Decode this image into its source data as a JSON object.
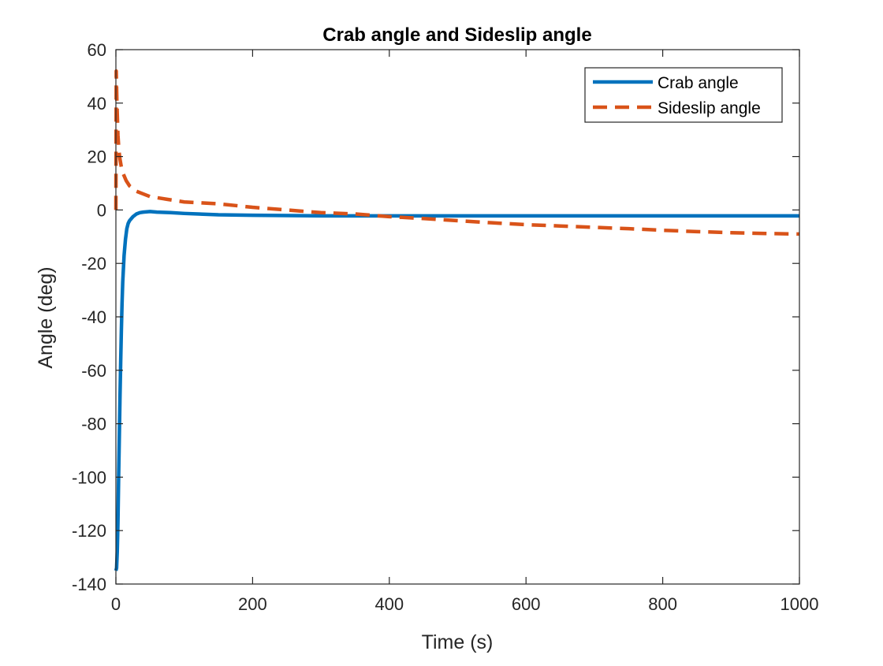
{
  "chart_data": {
    "type": "line",
    "title": "Crab angle and Sideslip angle",
    "xlabel": "Time (s)",
    "ylabel": "Angle (deg)",
    "xlim": [
      0,
      1000
    ],
    "ylim": [
      -140,
      60
    ],
    "xticks": [
      0,
      200,
      400,
      600,
      800,
      1000
    ],
    "yticks": [
      -140,
      -120,
      -100,
      -80,
      -60,
      -40,
      -20,
      0,
      20,
      40,
      60
    ],
    "grid": false,
    "legend": {
      "placement": "top-right",
      "entries": [
        "Crab angle",
        "Sideslip angle"
      ]
    },
    "series": [
      {
        "name": "Crab angle",
        "color": "#0072BD",
        "style": "solid",
        "x": [
          0,
          1,
          2,
          3,
          4,
          5,
          6,
          7,
          8,
          9,
          10,
          12,
          14,
          16,
          18,
          20,
          25,
          30,
          35,
          40,
          50,
          60,
          80,
          100,
          150,
          200,
          300,
          400,
          500,
          600,
          700,
          800,
          900,
          1000
        ],
        "y": [
          -135,
          -134,
          -128,
          -117,
          -100,
          -85,
          -70,
          -57,
          -45,
          -35,
          -27,
          -17,
          -11,
          -7,
          -5,
          -4,
          -2.5,
          -1.5,
          -1,
          -0.8,
          -0.6,
          -0.8,
          -1,
          -1.3,
          -1.8,
          -2,
          -2.2,
          -2.2,
          -2.2,
          -2.2,
          -2.2,
          -2.2,
          -2.2,
          -2.2
        ]
      },
      {
        "name": "Sideslip angle",
        "color": "#D95319",
        "style": "dashed",
        "x": [
          0,
          0.5,
          1,
          1.5,
          2,
          2.5,
          3,
          4,
          5,
          6,
          8,
          10,
          15,
          20,
          30,
          40,
          50,
          75,
          100,
          150,
          200,
          250,
          300,
          350,
          400,
          450,
          500,
          550,
          600,
          650,
          700,
          750,
          800,
          850,
          900,
          950,
          1000
        ],
        "y": [
          0,
          52,
          46,
          40,
          36,
          32,
          28,
          24,
          21,
          19,
          16,
          14,
          11,
          9,
          7,
          6,
          5,
          4,
          3,
          2.3,
          1,
          0,
          -1,
          -1.5,
          -2.5,
          -3.2,
          -4,
          -4.8,
          -5.5,
          -6,
          -6.5,
          -7,
          -7.6,
          -8.1,
          -8.5,
          -8.8,
          -9
        ]
      }
    ]
  }
}
